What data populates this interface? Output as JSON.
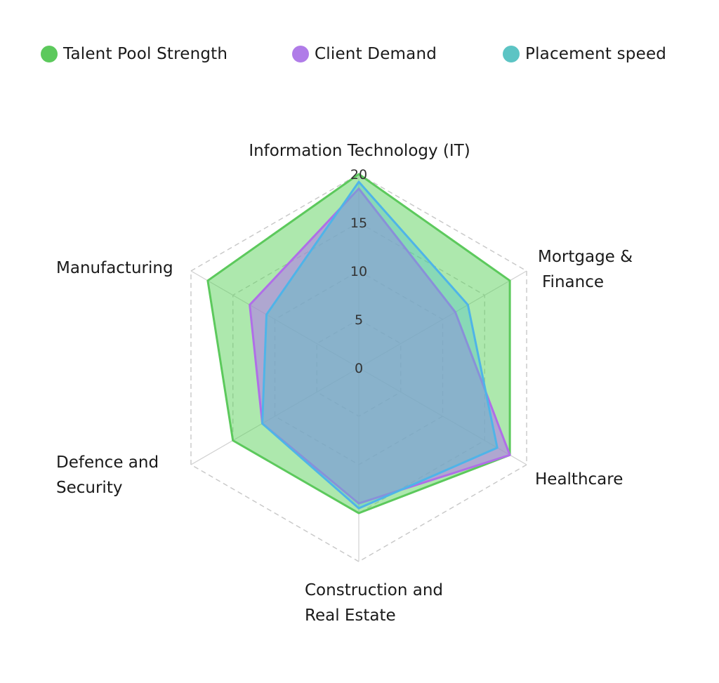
{
  "chart_data": {
    "type": "radar",
    "axes": [
      {
        "label_lines": [
          "Information Technology (IT)"
        ]
      },
      {
        "label_lines": [
          "Mortgage &",
          "Finance"
        ]
      },
      {
        "label_lines": [
          "Healthcare"
        ]
      },
      {
        "label_lines": [
          "Construction and",
          "Real Estate"
        ]
      },
      {
        "label_lines": [
          "Defence and",
          "Security"
        ]
      },
      {
        "label_lines": [
          "Manufacturing"
        ]
      }
    ],
    "ticks": [
      "0",
      "5",
      "10",
      "15",
      "20"
    ],
    "range": [
      0,
      20
    ],
    "grid": true,
    "legend_position": "top",
    "series": [
      {
        "name": "Talent Pool Strength",
        "color": "#5cc95c",
        "fill": "#5cd15c",
        "values": [
          20,
          18,
          18,
          15,
          15,
          18
        ]
      },
      {
        "name": "Client Demand",
        "color": "#b06ee8",
        "fill": "#b07ce8",
        "values": [
          18.5,
          11.5,
          18,
          14,
          11.5,
          13
        ]
      },
      {
        "name": "Placement speed",
        "color": "#4fb4e8",
        "fill": "#4fc4c4",
        "values": [
          19.2,
          13,
          16.5,
          14.5,
          11.5,
          11
        ]
      }
    ]
  }
}
